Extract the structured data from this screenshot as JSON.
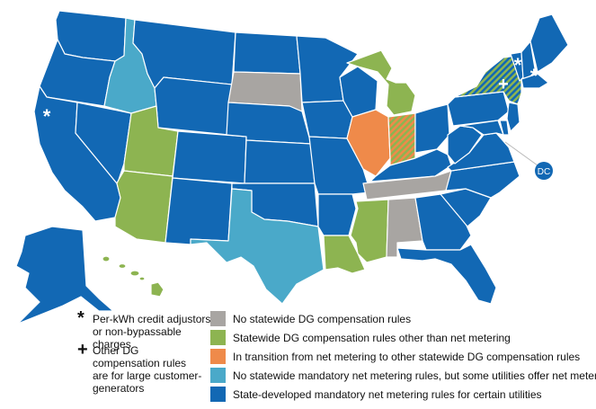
{
  "colors": {
    "none": "#a8a5a2",
    "other": "#8db451",
    "transition": "#ef8a4a",
    "voluntary": "#4aa9c9",
    "mandatory": "#1268b4"
  },
  "legend": [
    {
      "key": "none",
      "label": "No statewide DG compensation rules"
    },
    {
      "key": "other",
      "label": "Statewide DG compensation rules other than net metering"
    },
    {
      "key": "transition",
      "label": "In transition from net metering to other statewide DG compensation rules"
    },
    {
      "key": "voluntary",
      "label": "No statewide mandatory net metering rules, but some utilities offer net metering"
    },
    {
      "key": "mandatory",
      "label": "State-developed mandatory net metering rules for certain utilities"
    }
  ],
  "notes": {
    "asterisk_symbol": "*",
    "asterisk_text": "Per-kWh credit adjustors or non-bypassable charges",
    "plus_symbol": "+",
    "plus_text": "Other DG compensation rules are for large customer-generators"
  },
  "dc_label": "DC",
  "states": {
    "WA": "mandatory",
    "OR": "mandatory",
    "CA": "mandatory",
    "NV": "mandatory",
    "ID": "voluntary",
    "MT": "mandatory",
    "WY": "mandatory",
    "UT": "other",
    "AZ": "other",
    "CO": "mandatory",
    "NM": "mandatory",
    "ND": "mandatory",
    "SD": "none",
    "NE": "mandatory",
    "KS": "mandatory",
    "OK": "mandatory",
    "TX": "voluntary",
    "MN": "mandatory",
    "IA": "mandatory",
    "MO": "mandatory",
    "AR": "mandatory",
    "LA": "other",
    "WI": "mandatory",
    "IL": "transition",
    "MI": "other",
    "IN": "transition",
    "OH": "mandatory",
    "KY": "mandatory",
    "TN": "none",
    "MS": "other",
    "AL": "none",
    "GA": "mandatory",
    "FL": "mandatory",
    "SC": "mandatory",
    "NC": "mandatory",
    "VA": "mandatory",
    "WV": "mandatory",
    "PA": "mandatory",
    "NY": "other",
    "VT": "mandatory",
    "NH": "mandatory",
    "ME": "mandatory",
    "MA": "mandatory",
    "NJ": "mandatory",
    "MD": "mandatory",
    "DE": "mandatory",
    "AK": "mandatory",
    "HI": "other",
    "DC": "mandatory"
  },
  "hatched": {
    "IN": "transition",
    "NY": "mandatory"
  },
  "markers": {
    "CA": "*",
    "VT": "*",
    "MA": "*",
    "NY": "+"
  }
}
